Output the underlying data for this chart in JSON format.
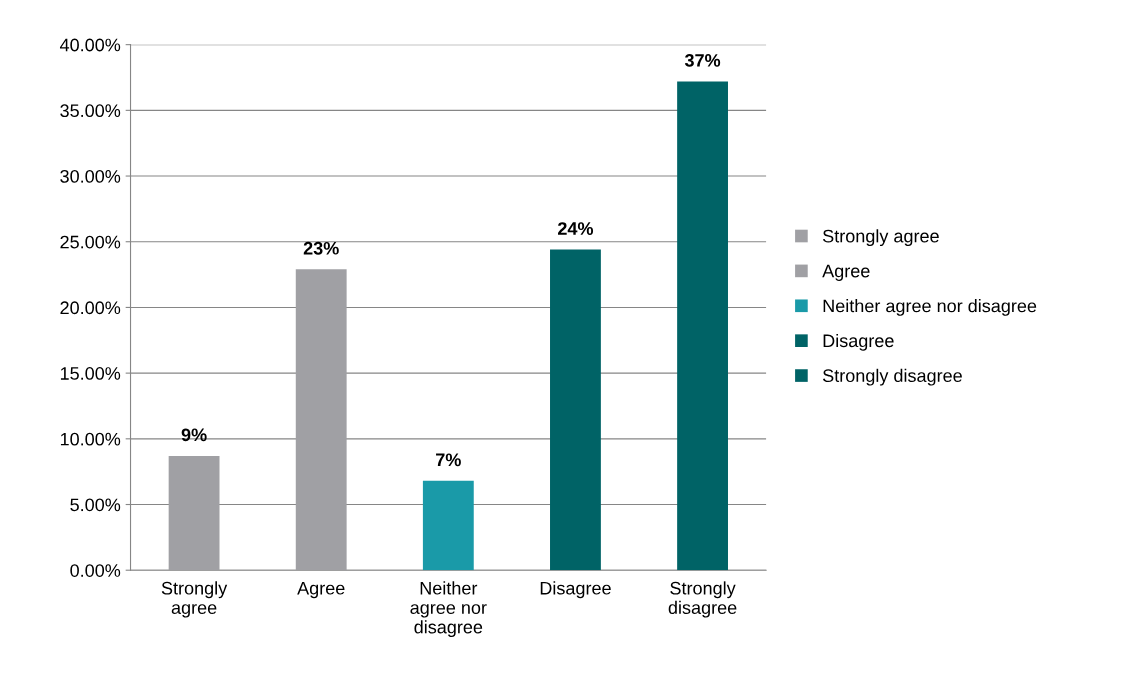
{
  "chart_data": {
    "type": "bar",
    "categories": [
      "Strongly agree",
      "Agree",
      "Neither agree nor disagree",
      "Disagree",
      "Strongly disagree"
    ],
    "series": [
      {
        "name": "Strongly agree",
        "color": "#a0a0a4",
        "values": [
          8.7,
          null,
          null,
          null,
          null
        ],
        "value_labels": [
          "9%",
          null,
          null,
          null,
          null
        ]
      },
      {
        "name": "Agree",
        "color": "#a0a0a4",
        "values": [
          null,
          22.9,
          null,
          null,
          null
        ],
        "value_labels": [
          null,
          "23%",
          null,
          null,
          null
        ]
      },
      {
        "name": "Neither agree nor disagree",
        "color": "#1a9aa8",
        "values": [
          null,
          null,
          6.8,
          null,
          null
        ],
        "value_labels": [
          null,
          null,
          "7%",
          null,
          null
        ]
      },
      {
        "name": "Disagree",
        "color": "#006366",
        "values": [
          null,
          null,
          null,
          24.4,
          null
        ],
        "value_labels": [
          null,
          null,
          null,
          "24%",
          null
        ]
      },
      {
        "name": "Strongly disagree",
        "color": "#006366",
        "values": [
          null,
          null,
          null,
          null,
          37.2
        ],
        "value_labels": [
          null,
          null,
          null,
          null,
          "37%"
        ]
      }
    ],
    "ylim": [
      0,
      40
    ],
    "yticks": [
      {
        "value": 0,
        "label": "0.00%"
      },
      {
        "value": 5,
        "label": "5.00%"
      },
      {
        "value": 10,
        "label": "10.00%"
      },
      {
        "value": 15,
        "label": "15.00%"
      },
      {
        "value": 20,
        "label": "20.00%"
      },
      {
        "value": 25,
        "label": "25.00%"
      },
      {
        "value": 30,
        "label": "30.00%"
      },
      {
        "value": 35,
        "label": "35.00%"
      },
      {
        "value": 40,
        "label": "40.00%"
      }
    ],
    "grid": "y",
    "legend": "right"
  }
}
